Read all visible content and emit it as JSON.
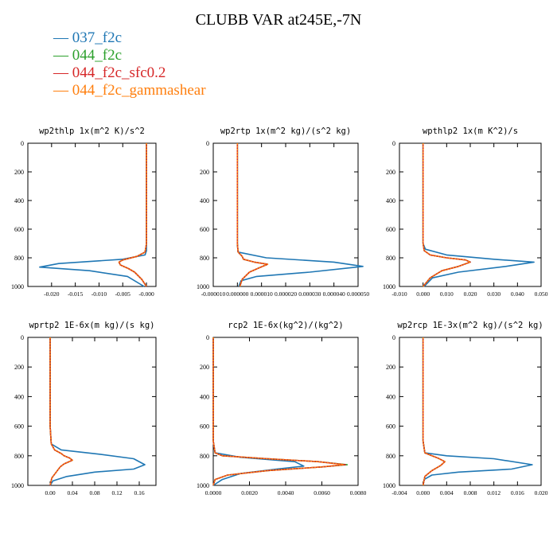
{
  "title": "CLUBB VAR at245E,-7N",
  "legend": [
    {
      "label": "037_f2c",
      "color": "#1f77b4"
    },
    {
      "label": "044_f2c",
      "color": "#2ca02c"
    },
    {
      "label": "044_f2c_sfc0.2",
      "color": "#d62728"
    },
    {
      "label": "044_f2c_gammashear",
      "color": "#ff7f0e"
    }
  ],
  "chart_data": [
    {
      "type": "line",
      "title": "wp2thlp  1x(m^2 K)/s^2",
      "xlim": [
        -0.025,
        0.002
      ],
      "xticks": [
        -0.02,
        -0.015,
        -0.01,
        -0.005,
        0.0
      ],
      "xtick_labels": [
        "-0.020",
        "-0.015",
        "-0.010",
        "-0.005",
        "-0.000"
      ],
      "ylim": [
        1000,
        0
      ],
      "yticks": [
        0,
        200,
        400,
        600,
        800,
        1000
      ],
      "series": [
        {
          "color": "#1f77b4",
          "x": [
            0,
            0,
            0,
            0,
            0,
            0,
            -0.0003,
            -0.005,
            -0.0185,
            -0.0225,
            -0.012,
            -0.004,
            -0.0005
          ],
          "y": [
            0,
            200,
            400,
            600,
            700,
            750,
            780,
            810,
            840,
            865,
            890,
            930,
            1000
          ]
        },
        {
          "color": "#2ca02c",
          "x": [
            0,
            0,
            0,
            0,
            0,
            -0.0003,
            -0.002,
            -0.005,
            -0.0058,
            -0.0055,
            -0.0038,
            -0.0025,
            -0.001,
            0
          ],
          "y": [
            0,
            200,
            400,
            600,
            700,
            760,
            790,
            815,
            830,
            850,
            875,
            900,
            950,
            1000
          ]
        },
        {
          "color": "#d62728",
          "x": [
            0,
            0,
            0,
            0,
            0,
            -0.0003,
            -0.002,
            -0.005,
            -0.0058,
            -0.0055,
            -0.0038,
            -0.0025,
            -0.001,
            0
          ],
          "y": [
            0,
            200,
            400,
            600,
            700,
            760,
            790,
            815,
            830,
            850,
            875,
            900,
            950,
            1000
          ]
        },
        {
          "color": "#ff7f0e",
          "x": [
            0,
            0,
            0,
            0,
            0,
            -0.0003,
            -0.002,
            -0.005,
            -0.0058,
            -0.0055,
            -0.0038,
            -0.0025,
            -0.001,
            0
          ],
          "y": [
            0,
            200,
            400,
            600,
            700,
            760,
            790,
            815,
            830,
            850,
            875,
            900,
            950,
            1000
          ]
        }
      ]
    },
    {
      "type": "line",
      "title": "wp2rtp  1x(m^2 kg)/(s^2 kg)",
      "xlim": [
        -1e-05,
        5e-05
      ],
      "xticks": [
        -1e-05,
        0.0,
        1e-05,
        2e-05,
        3e-05,
        4e-05,
        5e-05
      ],
      "xtick_labels": [
        "-0.000010",
        "0.000000",
        "0.000010",
        "0.000020",
        "0.000030",
        "0.000040",
        "0.000050"
      ],
      "ylim": [
        1000,
        0
      ],
      "yticks": [
        0,
        200,
        400,
        600,
        800,
        1000
      ],
      "series": [
        {
          "color": "#1f77b4",
          "x": [
            0,
            0,
            0,
            0,
            0,
            3e-07,
            1.2e-05,
            4e-05,
            5.2e-05,
            3e-05,
            8e-06,
            1.5e-06,
            5e-07
          ],
          "y": [
            0,
            200,
            400,
            600,
            700,
            760,
            800,
            830,
            860,
            900,
            930,
            960,
            1000
          ]
        },
        {
          "color": "#2ca02c",
          "x": [
            0,
            0,
            0,
            0,
            0,
            3e-07,
            2e-06,
            2.5e-06,
            7e-06,
            1.25e-05,
            9e-06,
            5e-06,
            2e-06,
            1e-06
          ],
          "y": [
            0,
            200,
            400,
            600,
            700,
            760,
            790,
            810,
            830,
            845,
            870,
            900,
            950,
            1000
          ]
        },
        {
          "color": "#d62728",
          "x": [
            0,
            0,
            0,
            0,
            0,
            3e-07,
            2e-06,
            2.5e-06,
            7e-06,
            1.25e-05,
            9e-06,
            5e-06,
            2e-06,
            1e-06
          ],
          "y": [
            0,
            200,
            400,
            600,
            700,
            760,
            790,
            810,
            830,
            845,
            870,
            900,
            950,
            1000
          ]
        },
        {
          "color": "#ff7f0e",
          "x": [
            0,
            0,
            0,
            0,
            0,
            3e-07,
            2e-06,
            2.5e-06,
            7e-06,
            1.25e-05,
            9e-06,
            5e-06,
            2e-06,
            1e-06
          ],
          "y": [
            0,
            200,
            400,
            600,
            700,
            760,
            790,
            810,
            830,
            845,
            870,
            900,
            950,
            1000
          ]
        }
      ]
    },
    {
      "type": "line",
      "title": "wpthlp2  1x(m K^2)/s",
      "xlim": [
        -0.01,
        0.05
      ],
      "xticks": [
        -0.01,
        0.0,
        0.01,
        0.02,
        0.03,
        0.04,
        0.05
      ],
      "xtick_labels": [
        "-0.010",
        "0.000",
        "0.010",
        "0.020",
        "0.030",
        "0.040",
        "0.050"
      ],
      "ylim": [
        1000,
        0
      ],
      "yticks": [
        0,
        200,
        400,
        600,
        800,
        1000
      ],
      "series": [
        {
          "color": "#1f77b4",
          "x": [
            0,
            0,
            0,
            0,
            0,
            0.001,
            0.01,
            0.03,
            0.047,
            0.035,
            0.015,
            0.004,
            0.0005
          ],
          "y": [
            0,
            200,
            400,
            600,
            700,
            740,
            780,
            810,
            830,
            860,
            900,
            940,
            1000
          ]
        },
        {
          "color": "#2ca02c",
          "x": [
            0,
            0,
            0,
            0,
            0,
            0.0005,
            0.003,
            0.01,
            0.018,
            0.02,
            0.015,
            0.008,
            0.003,
            0
          ],
          "y": [
            0,
            200,
            400,
            600,
            700,
            750,
            780,
            800,
            815,
            830,
            860,
            890,
            940,
            1000
          ]
        },
        {
          "color": "#d62728",
          "x": [
            0,
            0,
            0,
            0,
            0,
            0.0005,
            0.003,
            0.01,
            0.018,
            0.02,
            0.015,
            0.008,
            0.003,
            0
          ],
          "y": [
            0,
            200,
            400,
            600,
            700,
            750,
            780,
            800,
            815,
            830,
            860,
            890,
            940,
            1000
          ]
        },
        {
          "color": "#ff7f0e",
          "x": [
            0,
            0,
            0,
            0,
            0,
            0.0005,
            0.003,
            0.01,
            0.018,
            0.02,
            0.015,
            0.008,
            0.003,
            0
          ],
          "y": [
            0,
            200,
            400,
            600,
            700,
            750,
            780,
            800,
            815,
            830,
            860,
            890,
            940,
            1000
          ]
        }
      ]
    },
    {
      "type": "line",
      "title": "wprtp2  1E-6x(m kg)/(s kg)",
      "xlim": [
        -0.04,
        0.19
      ],
      "xticks": [
        0.0,
        0.04,
        0.08,
        0.12,
        0.16
      ],
      "xtick_labels": [
        "0.00",
        "0.04",
        "0.08",
        "0.12",
        "0.16"
      ],
      "ylim": [
        1000,
        0
      ],
      "yticks": [
        0,
        200,
        400,
        600,
        800,
        1000
      ],
      "series": [
        {
          "color": "#1f77b4",
          "x": [
            0,
            0,
            0,
            0,
            0.002,
            0.02,
            0.09,
            0.15,
            0.17,
            0.15,
            0.08,
            0.03,
            0.005,
            0
          ],
          "y": [
            0,
            200,
            400,
            600,
            720,
            760,
            790,
            820,
            860,
            890,
            910,
            940,
            970,
            1000
          ]
        },
        {
          "color": "#2ca02c",
          "x": [
            0,
            0,
            0,
            0,
            0.002,
            0.008,
            0.02,
            0.025,
            0.035,
            0.04,
            0.025,
            0.018,
            0.012,
            0.003,
            0
          ],
          "y": [
            0,
            200,
            400,
            600,
            720,
            760,
            785,
            800,
            815,
            830,
            855,
            875,
            905,
            950,
            1000
          ]
        },
        {
          "color": "#d62728",
          "x": [
            0,
            0,
            0,
            0,
            0.002,
            0.008,
            0.02,
            0.025,
            0.035,
            0.04,
            0.025,
            0.018,
            0.012,
            0.003,
            0
          ],
          "y": [
            0,
            200,
            400,
            600,
            720,
            760,
            785,
            800,
            815,
            830,
            855,
            875,
            905,
            950,
            1000
          ]
        },
        {
          "color": "#ff7f0e",
          "x": [
            0,
            0,
            0,
            0,
            0.002,
            0.008,
            0.02,
            0.025,
            0.035,
            0.04,
            0.025,
            0.018,
            0.012,
            0.003,
            0
          ],
          "y": [
            0,
            200,
            400,
            600,
            720,
            760,
            785,
            800,
            815,
            830,
            855,
            875,
            905,
            950,
            1000
          ]
        }
      ]
    },
    {
      "type": "line",
      "title": "rcp2  1E-6x(kg^2)/(kg^2)",
      "xlim": [
        0,
        0.008
      ],
      "xticks": [
        0.0,
        0.002,
        0.004,
        0.006,
        0.008
      ],
      "xtick_labels": [
        "0.0000",
        "0.0020",
        "0.0040",
        "0.0060",
        "0.0080"
      ],
      "ylim": [
        1000,
        0
      ],
      "yticks": [
        0,
        200,
        400,
        600,
        800,
        1000
      ],
      "series": [
        {
          "color": "#1f77b4",
          "x": [
            0,
            0,
            0,
            0,
            0,
            0.0001,
            0.0015,
            0.0045,
            0.005,
            0.0035,
            0.0015,
            0.0005,
            0
          ],
          "y": [
            0,
            200,
            400,
            600,
            700,
            780,
            810,
            840,
            870,
            890,
            920,
            960,
            1000
          ]
        },
        {
          "color": "#2ca02c",
          "x": [
            0,
            0,
            0,
            0,
            0,
            0.0001,
            0.0005,
            0.003,
            0.0058,
            0.0074,
            0.006,
            0.003,
            0.0008,
            0.0001,
            0
          ],
          "y": [
            0,
            200,
            400,
            600,
            700,
            780,
            800,
            820,
            840,
            860,
            875,
            900,
            930,
            960,
            1000
          ]
        },
        {
          "color": "#d62728",
          "x": [
            0,
            0,
            0,
            0,
            0,
            0.0001,
            0.0005,
            0.003,
            0.0058,
            0.0073,
            0.006,
            0.003,
            0.0008,
            0.0001,
            0
          ],
          "y": [
            0,
            200,
            400,
            600,
            700,
            780,
            800,
            820,
            840,
            860,
            875,
            900,
            930,
            960,
            1000
          ]
        },
        {
          "color": "#ff7f0e",
          "x": [
            0,
            0,
            0,
            0,
            0,
            0.0001,
            0.0005,
            0.003,
            0.0058,
            0.0072,
            0.006,
            0.003,
            0.0008,
            0.0001,
            0
          ],
          "y": [
            0,
            200,
            400,
            600,
            700,
            780,
            800,
            820,
            840,
            860,
            875,
            900,
            930,
            960,
            1000
          ]
        }
      ]
    },
    {
      "type": "line",
      "title": "wp2rcp  1E-3x(m^2 kg)/(s^2 kg)",
      "xlim": [
        -0.004,
        0.02
      ],
      "xticks": [
        -0.004,
        0.0,
        0.004,
        0.008,
        0.012,
        0.016,
        0.02
      ],
      "xtick_labels": [
        "-0.004",
        "0.000",
        "0.004",
        "0.008",
        "0.012",
        "0.016",
        "0.020"
      ],
      "ylim": [
        1000,
        0
      ],
      "yticks": [
        0,
        200,
        400,
        600,
        800,
        1000
      ],
      "series": [
        {
          "color": "#1f77b4",
          "x": [
            0,
            0,
            0,
            0,
            0,
            0.0003,
            0.004,
            0.012,
            0.0185,
            0.015,
            0.006,
            0.0015,
            0.0002,
            0
          ],
          "y": [
            0,
            200,
            400,
            600,
            700,
            780,
            800,
            820,
            860,
            890,
            910,
            930,
            960,
            1000
          ]
        },
        {
          "color": "#2ca02c",
          "x": [
            0,
            0,
            0,
            0,
            0,
            0.0003,
            0.0015,
            0.0025,
            0.0037,
            0.003,
            0.0015,
            0.0003,
            0
          ],
          "y": [
            0,
            200,
            400,
            600,
            700,
            780,
            800,
            815,
            840,
            865,
            900,
            940,
            1000
          ]
        },
        {
          "color": "#d62728",
          "x": [
            0,
            0,
            0,
            0,
            0,
            0.0003,
            0.0015,
            0.0025,
            0.0037,
            0.003,
            0.0015,
            0.0003,
            0
          ],
          "y": [
            0,
            200,
            400,
            600,
            700,
            780,
            800,
            815,
            840,
            865,
            900,
            940,
            1000
          ]
        },
        {
          "color": "#ff7f0e",
          "x": [
            0,
            0,
            0,
            0,
            0,
            0.0003,
            0.0015,
            0.0025,
            0.0037,
            0.003,
            0.0015,
            0.0003,
            0
          ],
          "y": [
            0,
            200,
            400,
            600,
            700,
            780,
            800,
            815,
            840,
            865,
            900,
            940,
            1000
          ]
        }
      ]
    }
  ]
}
